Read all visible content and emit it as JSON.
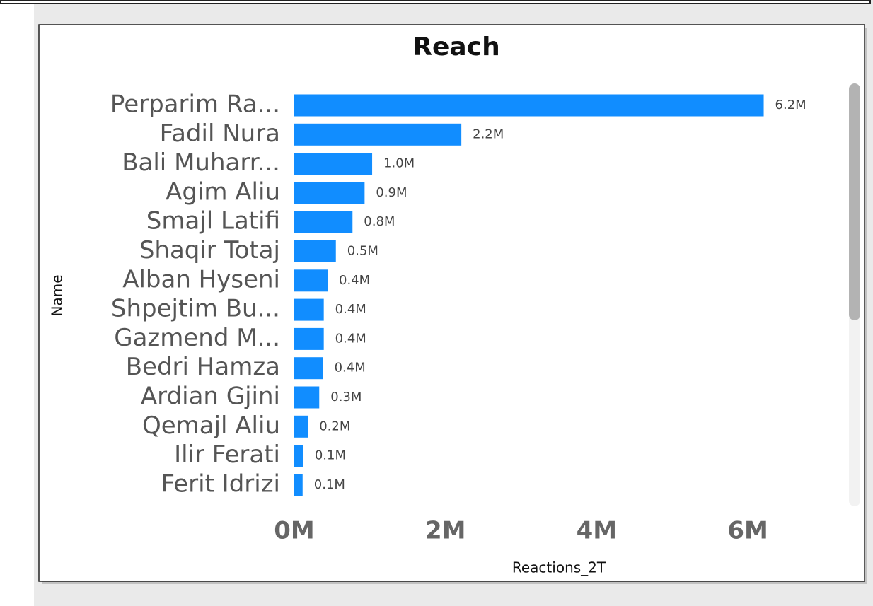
{
  "chart_data": {
    "type": "hbar",
    "title": "Reach",
    "y_label": "Name",
    "x_label": "Reactions_2T",
    "categories": [
      "Perparim Ra...",
      "Fadil Nura",
      "Bali Muharr...",
      "Agim Aliu",
      "Smajl Latifi",
      "Shaqir Totaj",
      "Alban Hyseni",
      "Shpejtim Bu...",
      "Gazmend M...",
      "Bedri Hamza",
      "Ardian Gjini",
      "Qemajl Aliu",
      "Ilir Ferati",
      "Ferit Idrizi"
    ],
    "values": [
      6210000,
      2210000,
      1030000,
      930000,
      770000,
      550000,
      440000,
      390000,
      390000,
      380000,
      330000,
      180000,
      120000,
      110000
    ],
    "value_labels": [
      "6.2M",
      "2.2M",
      "1.0M",
      "0.9M",
      "0.8M",
      "0.5M",
      "0.4M",
      "0.4M",
      "0.4M",
      "0.4M",
      "0.3M",
      "0.2M",
      "0.1M",
      "0.1M"
    ],
    "color": "#118dff",
    "xlim": [
      0,
      7000000
    ],
    "xticks": [
      {
        "value": 0,
        "label": "0M"
      },
      {
        "value": 2000000,
        "label": "2M"
      },
      {
        "value": 4000000,
        "label": "4M"
      },
      {
        "value": 6000000,
        "label": "6M"
      }
    ],
    "grid": false
  }
}
